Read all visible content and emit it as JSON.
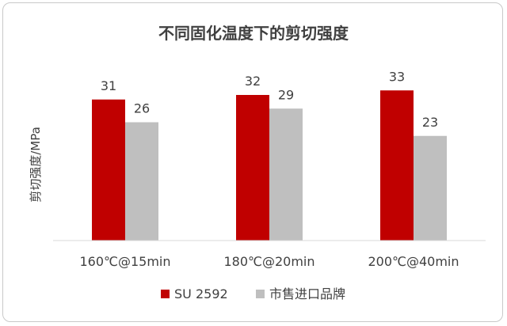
{
  "chart_data": {
    "type": "bar",
    "title": "不同固化温度下的剪切强度",
    "xlabel": "",
    "ylabel": "剪切强度/MPa",
    "ylim": [
      0,
      40
    ],
    "categories": [
      "160℃@15min",
      "180℃@20min",
      "200℃@40min"
    ],
    "series": [
      {
        "name": "SU 2592",
        "values": [
          31,
          32,
          33
        ],
        "color": "#c00000"
      },
      {
        "name": "市售进口品牌",
        "values": [
          26,
          29,
          23
        ],
        "color": "#bfbfbf"
      }
    ],
    "grid": false,
    "legend_position": "bottom",
    "axis_color": "#d9d9d9"
  }
}
